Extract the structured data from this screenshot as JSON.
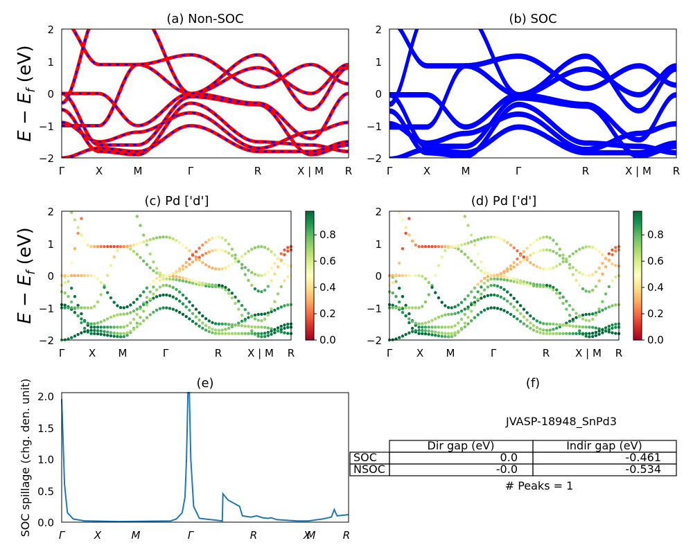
{
  "figure": {
    "panel_a": {
      "title": "(a) Non-SOC"
    },
    "panel_b": {
      "title": "(b) SOC"
    },
    "panel_c": {
      "title": "(c)  Pd ['d']"
    },
    "panel_d": {
      "title": "(d) Pd ['d']"
    },
    "panel_e": {
      "title": "(e)",
      "ylabel": "SOC spillage (chg. den. unit)"
    },
    "panel_f": {
      "title": "(f)",
      "material": "JVASP-18948_SnPd3",
      "table": {
        "headers": [
          "",
          "Dir gap (eV)",
          "Indir gap (eV)"
        ],
        "rows": [
          [
            "SOC",
            "0.0",
            "-0.461"
          ],
          [
            "NSOC",
            "-0.0",
            "-0.534"
          ]
        ]
      },
      "peaks": "# Peaks = 1"
    },
    "band_ylabel_main": "E − E",
    "band_ylabel_sub": "f",
    "band_ylabel_unit": " (eV)",
    "colorbar_ticks": [
      "0.0",
      "0.2",
      "0.4",
      "0.6",
      "0.8"
    ],
    "colormap": [
      "#a50026",
      "#d73027",
      "#f46d43",
      "#fdae61",
      "#fee08b",
      "#ffffbf",
      "#d9ef8b",
      "#a6d96a",
      "#66bd63",
      "#1a9850",
      "#006837"
    ],
    "colors": {
      "nonsoc_line": "#ff0000",
      "nonsoc_dash": "#0000ff",
      "soc_line": "#0000ff",
      "spillage_line": "#1f77b4"
    }
  },
  "chart_data": [
    {
      "type": "line",
      "title": "(a) Non-SOC",
      "ylabel": "E − E_f (eV)",
      "ylim": [
        -2,
        2
      ],
      "y_ticks": [
        "−2",
        "−1",
        "0",
        "1",
        "2"
      ],
      "x_ticks": [
        "Γ",
        "X",
        "M",
        "Γ",
        "R",
        "X | M",
        "R"
      ],
      "series": [
        {
          "values_at_ticks": [
            0.0,
            -1.6,
            -1.6,
            -0.1,
            -0.35,
            -1.9,
            -1.6
          ]
        },
        {
          "values_at_ticks": [
            -0.9,
            -1.5,
            -1.2,
            -0.6,
            -1.7,
            -1.2,
            -0.9
          ]
        },
        {
          "values_at_ticks": [
            -1.0,
            -1.0,
            0.9,
            0.0,
            0.8,
            0.0,
            0.9
          ]
        },
        {
          "values_at_ticks": [
            0.0,
            0.0,
            -1.0,
            0.0,
            -0.3,
            -1.4,
            0.0
          ]
        }
      ]
    },
    {
      "type": "line",
      "title": "(b) SOC",
      "ylim": [
        -2,
        2
      ],
      "y_ticks": [
        "−2",
        "−1",
        "0",
        "1",
        "2"
      ],
      "x_ticks": [
        "Γ",
        "X",
        "M",
        "Γ",
        "R",
        "X | M",
        "R"
      ]
    },
    {
      "type": "scatter",
      "title": "(c)  Pd ['d']",
      "ylim": [
        -2,
        2
      ],
      "colorbar": {
        "range": [
          0.0,
          1.0
        ],
        "ticks": [
          0.0,
          0.2,
          0.4,
          0.6,
          0.8
        ]
      },
      "x_ticks": [
        "Γ",
        "X",
        "M",
        "Γ",
        "R",
        "X | M",
        "R"
      ]
    },
    {
      "type": "scatter",
      "title": "(d) Pd ['d']",
      "ylim": [
        -2,
        2
      ],
      "colorbar": {
        "range": [
          0.0,
          1.0
        ],
        "ticks": [
          0.0,
          0.2,
          0.4,
          0.6,
          0.8
        ]
      },
      "x_ticks": [
        "Γ",
        "X",
        "M",
        "Γ",
        "R",
        "X | M",
        "R"
      ]
    },
    {
      "type": "line",
      "title": "(e)",
      "ylabel": "SOC spillage (chg. den. unit)",
      "ylim": [
        0.0,
        2.05
      ],
      "y_ticks": [
        "0.0",
        "0.5",
        "1.0",
        "1.5",
        "2.0"
      ],
      "x_ticks": [
        "Γ",
        "X",
        "M",
        "Γ",
        "R",
        "X",
        "M",
        "R"
      ],
      "x": [
        0.0,
        0.01,
        0.02,
        0.04,
        0.08,
        0.2,
        0.38,
        0.4,
        0.42,
        0.43,
        0.435,
        0.44,
        0.445,
        0.45,
        0.46,
        0.48,
        0.56,
        0.562,
        0.58,
        0.62,
        0.63,
        0.66,
        0.68,
        0.7,
        0.72,
        0.73,
        0.75,
        0.82,
        0.86,
        0.91,
        0.94,
        0.95,
        0.96,
        1.0
      ],
      "values": [
        1.95,
        0.6,
        0.15,
        0.05,
        0.02,
        0.01,
        0.02,
        0.05,
        0.15,
        0.4,
        1.0,
        2.05,
        2.05,
        1.0,
        0.25,
        0.06,
        0.02,
        0.45,
        0.35,
        0.25,
        0.1,
        0.08,
        0.1,
        0.07,
        0.06,
        0.07,
        0.04,
        0.02,
        0.02,
        0.05,
        0.08,
        0.2,
        0.1,
        0.12
      ]
    }
  ]
}
